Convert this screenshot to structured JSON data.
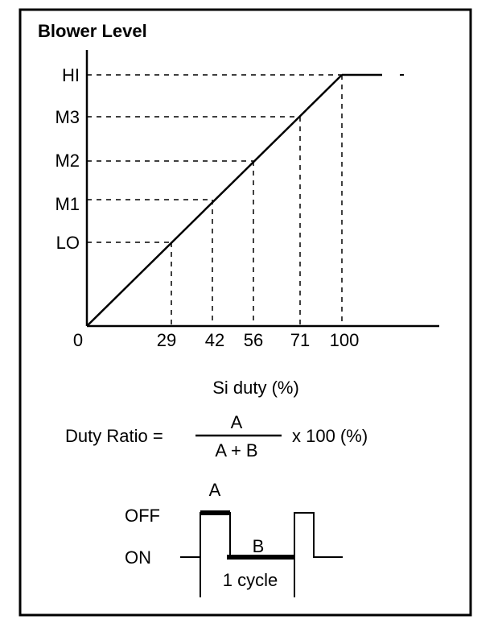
{
  "title": "Blower Level",
  "y_levels": [
    {
      "label": "HI"
    },
    {
      "label": "M3"
    },
    {
      "label": "M2"
    },
    {
      "label": "M1"
    },
    {
      "label": "LO"
    }
  ],
  "origin_label": "0",
  "x_ticks": [
    {
      "label": "29"
    },
    {
      "label": "42"
    },
    {
      "label": "56"
    },
    {
      "label": "71"
    },
    {
      "label": "100"
    }
  ],
  "x_axis_label": "Si duty (%)",
  "formula": {
    "lhs": "Duty Ratio =",
    "numerator": "A",
    "denominator": "A + B",
    "rhs": "x 100 (%)"
  },
  "waveform": {
    "off_label": "OFF",
    "on_label": "ON",
    "a_label": "A",
    "b_label": "B",
    "cycle_label": "1 cycle"
  }
}
